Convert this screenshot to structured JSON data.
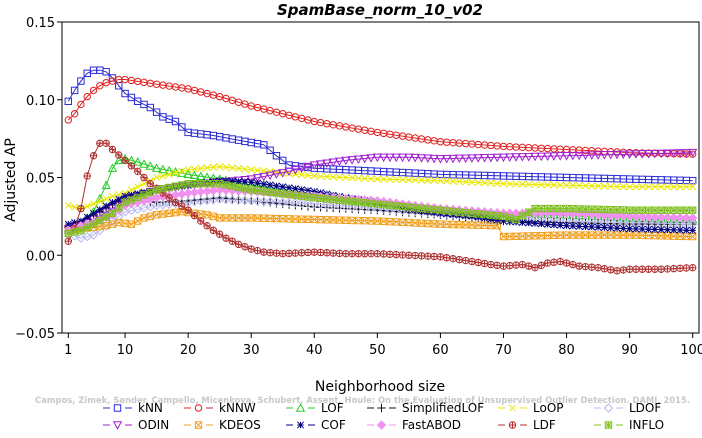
{
  "chart_data": {
    "type": "line",
    "title": "SpamBase_norm_10_v02",
    "xlabel": "Neighborhood size",
    "ylabel": "Adjusted AP",
    "xlim": [
      0,
      101
    ],
    "ylim": [
      -0.05,
      0.15
    ],
    "xticks": [
      1,
      10,
      20,
      30,
      40,
      50,
      60,
      70,
      80,
      90,
      100
    ],
    "xtick_labels": [
      "1",
      "10",
      "20",
      "30",
      "40",
      "50",
      "60",
      "70",
      "80",
      "90",
      "100"
    ],
    "yticks": [
      -0.05,
      0.0,
      0.05,
      0.1,
      0.15
    ],
    "ytick_labels": [
      "−0.05",
      "0.00",
      "0.05",
      "0.10",
      "0.15"
    ],
    "grid": false,
    "legend_position": "bottom",
    "watermark": "Campos, Zimek, Sander, Campello, Micenkova, Schubert, Assent, Houle: On the Evaluation of Unsupervised Outlier Detection. DAMI, 2015.",
    "series": [
      {
        "name": "kNN",
        "marker": "square",
        "color": "#2b2bd6",
        "points": [
          [
            1,
            0.099
          ],
          [
            2,
            0.106
          ],
          [
            3,
            0.112
          ],
          [
            4,
            0.117
          ],
          [
            5,
            0.119
          ],
          [
            6,
            0.119
          ],
          [
            7,
            0.118
          ],
          [
            8,
            0.114
          ],
          [
            10,
            0.104
          ],
          [
            12,
            0.099
          ],
          [
            14,
            0.095
          ],
          [
            16,
            0.089
          ],
          [
            18,
            0.086
          ],
          [
            20,
            0.079
          ],
          [
            24,
            0.077
          ],
          [
            28,
            0.074
          ],
          [
            32,
            0.071
          ],
          [
            34,
            0.064
          ],
          [
            36,
            0.058
          ],
          [
            40,
            0.056
          ],
          [
            45,
            0.055
          ],
          [
            50,
            0.054
          ],
          [
            60,
            0.052
          ],
          [
            70,
            0.051
          ],
          [
            80,
            0.05
          ],
          [
            90,
            0.049
          ],
          [
            100,
            0.048
          ]
        ]
      },
      {
        "name": "kNNW",
        "marker": "circle",
        "color": "#e02020",
        "points": [
          [
            1,
            0.087
          ],
          [
            2,
            0.091
          ],
          [
            3,
            0.097
          ],
          [
            4,
            0.102
          ],
          [
            5,
            0.106
          ],
          [
            6,
            0.109
          ],
          [
            7,
            0.111
          ],
          [
            8,
            0.112
          ],
          [
            9,
            0.113
          ],
          [
            10,
            0.113
          ],
          [
            15,
            0.11
          ],
          [
            20,
            0.107
          ],
          [
            25,
            0.102
          ],
          [
            30,
            0.096
          ],
          [
            40,
            0.086
          ],
          [
            50,
            0.079
          ],
          [
            60,
            0.073
          ],
          [
            70,
            0.07
          ],
          [
            80,
            0.068
          ],
          [
            90,
            0.066
          ],
          [
            100,
            0.065
          ]
        ]
      },
      {
        "name": "LOF",
        "marker": "triangle-up",
        "color": "#22cc22",
        "points": [
          [
            1,
            0.017
          ],
          [
            3,
            0.02
          ],
          [
            5,
            0.028
          ],
          [
            7,
            0.045
          ],
          [
            8,
            0.056
          ],
          [
            9,
            0.061
          ],
          [
            10,
            0.062
          ],
          [
            12,
            0.06
          ],
          [
            15,
            0.056
          ],
          [
            20,
            0.052
          ],
          [
            25,
            0.049
          ],
          [
            30,
            0.045
          ],
          [
            40,
            0.039
          ],
          [
            50,
            0.034
          ],
          [
            60,
            0.03
          ],
          [
            70,
            0.027
          ],
          [
            80,
            0.026
          ],
          [
            90,
            0.024
          ],
          [
            100,
            0.023
          ]
        ]
      },
      {
        "name": "SimplifiedLOF",
        "marker": "plus",
        "color": "#111111",
        "points": [
          [
            1,
            0.018
          ],
          [
            3,
            0.021
          ],
          [
            5,
            0.026
          ],
          [
            8,
            0.033
          ],
          [
            10,
            0.036
          ],
          [
            15,
            0.034
          ],
          [
            20,
            0.035
          ],
          [
            25,
            0.037
          ],
          [
            30,
            0.035
          ],
          [
            35,
            0.033
          ],
          [
            40,
            0.031
          ],
          [
            50,
            0.029
          ],
          [
            60,
            0.026
          ],
          [
            70,
            0.022
          ],
          [
            80,
            0.021
          ],
          [
            90,
            0.02
          ],
          [
            100,
            0.02
          ]
        ]
      },
      {
        "name": "LoOP",
        "marker": "cross",
        "color": "#e8e800",
        "points": [
          [
            1,
            0.032
          ],
          [
            3,
            0.03
          ],
          [
            5,
            0.033
          ],
          [
            8,
            0.038
          ],
          [
            10,
            0.04
          ],
          [
            15,
            0.05
          ],
          [
            20,
            0.055
          ],
          [
            25,
            0.057
          ],
          [
            30,
            0.055
          ],
          [
            40,
            0.051
          ],
          [
            50,
            0.049
          ],
          [
            60,
            0.048
          ],
          [
            70,
            0.046
          ],
          [
            80,
            0.045
          ],
          [
            90,
            0.044
          ],
          [
            100,
            0.044
          ]
        ]
      },
      {
        "name": "LDOF",
        "marker": "diamond",
        "color": "#b8b8f0",
        "points": [
          [
            1,
            0.014
          ],
          [
            3,
            0.011
          ],
          [
            5,
            0.013
          ],
          [
            8,
            0.022
          ],
          [
            10,
            0.028
          ],
          [
            15,
            0.032
          ],
          [
            20,
            0.034
          ],
          [
            25,
            0.036
          ],
          [
            30,
            0.035
          ],
          [
            40,
            0.033
          ],
          [
            50,
            0.03
          ],
          [
            60,
            0.027
          ],
          [
            70,
            0.024
          ],
          [
            80,
            0.022
          ],
          [
            90,
            0.021
          ],
          [
            100,
            0.02
          ]
        ]
      },
      {
        "name": "ODIN",
        "marker": "triangle-down",
        "color": "#a020d0",
        "points": [
          [
            1,
            0.017
          ],
          [
            3,
            0.019
          ],
          [
            5,
            0.023
          ],
          [
            8,
            0.03
          ],
          [
            10,
            0.036
          ],
          [
            15,
            0.042
          ],
          [
            20,
            0.045
          ],
          [
            25,
            0.047
          ],
          [
            30,
            0.049
          ],
          [
            35,
            0.053
          ],
          [
            40,
            0.058
          ],
          [
            45,
            0.061
          ],
          [
            50,
            0.063
          ],
          [
            55,
            0.063
          ],
          [
            60,
            0.062
          ],
          [
            70,
            0.063
          ],
          [
            80,
            0.064
          ],
          [
            90,
            0.065
          ],
          [
            100,
            0.066
          ]
        ]
      },
      {
        "name": "KDEOS",
        "marker": "square-x",
        "color": "#f0a020",
        "points": [
          [
            1,
            0.016
          ],
          [
            3,
            0.017
          ],
          [
            5,
            0.018
          ],
          [
            7,
            0.019
          ],
          [
            9,
            0.021
          ],
          [
            11,
            0.02
          ],
          [
            13,
            0.024
          ],
          [
            15,
            0.026
          ],
          [
            17,
            0.027
          ],
          [
            19,
            0.028
          ],
          [
            21,
            0.027
          ],
          [
            23,
            0.026
          ],
          [
            25,
            0.024
          ],
          [
            30,
            0.024
          ],
          [
            40,
            0.023
          ],
          [
            50,
            0.022
          ],
          [
            60,
            0.02
          ],
          [
            69,
            0.019
          ],
          [
            70,
            0.012
          ],
          [
            80,
            0.013
          ],
          [
            90,
            0.013
          ],
          [
            100,
            0.012
          ]
        ]
      },
      {
        "name": "COF",
        "marker": "asterisk",
        "color": "#000080",
        "points": [
          [
            1,
            0.02
          ],
          [
            3,
            0.022
          ],
          [
            5,
            0.027
          ],
          [
            8,
            0.034
          ],
          [
            10,
            0.038
          ],
          [
            15,
            0.042
          ],
          [
            20,
            0.045
          ],
          [
            25,
            0.048
          ],
          [
            30,
            0.047
          ],
          [
            35,
            0.044
          ],
          [
            40,
            0.041
          ],
          [
            45,
            0.037
          ],
          [
            50,
            0.034
          ],
          [
            55,
            0.03
          ],
          [
            60,
            0.027
          ],
          [
            65,
            0.025
          ],
          [
            70,
            0.022
          ],
          [
            80,
            0.019
          ],
          [
            90,
            0.017
          ],
          [
            100,
            0.016
          ]
        ]
      },
      {
        "name": "FastABOD",
        "marker": "diamond-filled",
        "color": "#f090f0",
        "points": [
          [
            1,
            0.016
          ],
          [
            3,
            0.019
          ],
          [
            5,
            0.021
          ],
          [
            8,
            0.026
          ],
          [
            10,
            0.032
          ],
          [
            15,
            0.037
          ],
          [
            20,
            0.04
          ],
          [
            25,
            0.042
          ],
          [
            30,
            0.041
          ],
          [
            40,
            0.038
          ],
          [
            50,
            0.035
          ],
          [
            60,
            0.03
          ],
          [
            70,
            0.027
          ],
          [
            80,
            0.027
          ],
          [
            90,
            0.025
          ],
          [
            100,
            0.024
          ]
        ]
      },
      {
        "name": "LDF",
        "marker": "circle-plus",
        "color": "#b03030",
        "points": [
          [
            1,
            0.009
          ],
          [
            2,
            0.017
          ],
          [
            3,
            0.03
          ],
          [
            4,
            0.051
          ],
          [
            5,
            0.064
          ],
          [
            6,
            0.072
          ],
          [
            7,
            0.072
          ],
          [
            8,
            0.068
          ],
          [
            10,
            0.061
          ],
          [
            12,
            0.054
          ],
          [
            14,
            0.046
          ],
          [
            16,
            0.04
          ],
          [
            18,
            0.034
          ],
          [
            20,
            0.029
          ],
          [
            22,
            0.022
          ],
          [
            24,
            0.016
          ],
          [
            26,
            0.011
          ],
          [
            28,
            0.007
          ],
          [
            30,
            0.004
          ],
          [
            32,
            0.002
          ],
          [
            35,
            0.001
          ],
          [
            40,
            0.002
          ],
          [
            45,
            0.001
          ],
          [
            50,
            0.001
          ],
          [
            55,
            0.0
          ],
          [
            60,
            -0.001
          ],
          [
            65,
            -0.004
          ],
          [
            68,
            -0.006
          ],
          [
            70,
            -0.007
          ],
          [
            73,
            -0.006
          ],
          [
            75,
            -0.008
          ],
          [
            77,
            -0.005
          ],
          [
            79,
            -0.004
          ],
          [
            82,
            -0.007
          ],
          [
            85,
            -0.008
          ],
          [
            88,
            -0.01
          ],
          [
            90,
            -0.009
          ],
          [
            95,
            -0.009
          ],
          [
            100,
            -0.008
          ]
        ]
      },
      {
        "name": "INFLO",
        "marker": "square-star",
        "color": "#80c020",
        "points": [
          [
            1,
            0.014
          ],
          [
            3,
            0.016
          ],
          [
            5,
            0.02
          ],
          [
            8,
            0.027
          ],
          [
            10,
            0.034
          ],
          [
            15,
            0.042
          ],
          [
            20,
            0.046
          ],
          [
            25,
            0.046
          ],
          [
            30,
            0.042
          ],
          [
            40,
            0.037
          ],
          [
            50,
            0.033
          ],
          [
            60,
            0.029
          ],
          [
            70,
            0.025
          ],
          [
            72,
            0.023
          ],
          [
            75,
            0.03
          ],
          [
            80,
            0.03
          ],
          [
            90,
            0.029
          ],
          [
            100,
            0.029
          ]
        ]
      }
    ]
  }
}
